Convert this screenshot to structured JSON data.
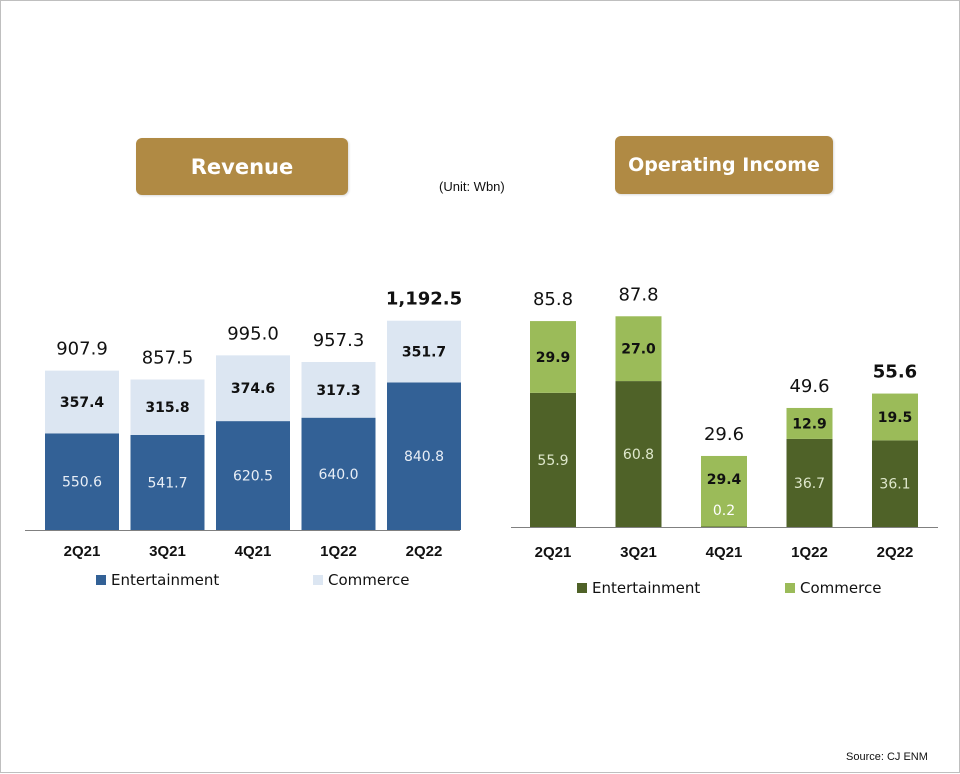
{
  "header": {
    "unit": "(Unit: Wbn)",
    "source": "Source: CJ ENM"
  },
  "colors": {
    "revenue_entertainment": "#336196",
    "revenue_commerce": "#dce6f2",
    "oi_entertainment": "#4f6228",
    "oi_commerce": "#9bbb59",
    "highlight": "#c00000",
    "pill": "#b08a44"
  },
  "chart_data": [
    {
      "type": "bar",
      "stacked": true,
      "title": "Revenue",
      "categories": [
        "2Q21",
        "3Q21",
        "4Q21",
        "1Q22",
        "2Q22"
      ],
      "series": [
        {
          "name": "Entertainment",
          "values": [
            550.6,
            541.7,
            620.5,
            640.0,
            840.8
          ],
          "labels": [
            "550.6",
            "541.7",
            "620.5",
            "640.0",
            "840.8"
          ]
        },
        {
          "name": "Commerce",
          "values": [
            357.4,
            315.8,
            374.6,
            317.3,
            351.7
          ],
          "labels": [
            "357.4",
            "315.8",
            "374.6",
            "317.3",
            "351.7"
          ]
        }
      ],
      "totals": [
        907.9,
        857.5,
        995.0,
        957.3,
        1192.5
      ],
      "total_labels": [
        "907.9",
        "857.5",
        "995.0",
        "957.3",
        "1,192.5"
      ],
      "highlight_index": 4,
      "ylim": [
        0,
        1300
      ],
      "legend": "bottom"
    },
    {
      "type": "bar",
      "stacked": true,
      "title": "Operating Income",
      "categories": [
        "2Q21",
        "3Q21",
        "4Q21",
        "1Q22",
        "2Q22"
      ],
      "series": [
        {
          "name": "Entertainment",
          "values": [
            55.9,
            60.8,
            0.2,
            36.7,
            36.1
          ],
          "labels": [
            "55.9",
            "60.8",
            "0.2",
            "36.7",
            "36.1"
          ]
        },
        {
          "name": "Commerce",
          "values": [
            29.9,
            27.0,
            29.4,
            12.9,
            19.5
          ],
          "labels": [
            "29.9",
            "27.0",
            "29.4",
            "12.9",
            "19.5"
          ]
        }
      ],
      "totals": [
        85.8,
        87.8,
        29.6,
        49.6,
        55.6
      ],
      "total_labels": [
        "85.8",
        "87.8",
        "29.6",
        "49.6",
        "55.6"
      ],
      "highlight_index": 4,
      "ylim": [
        0,
        100
      ],
      "legend": "bottom"
    }
  ]
}
